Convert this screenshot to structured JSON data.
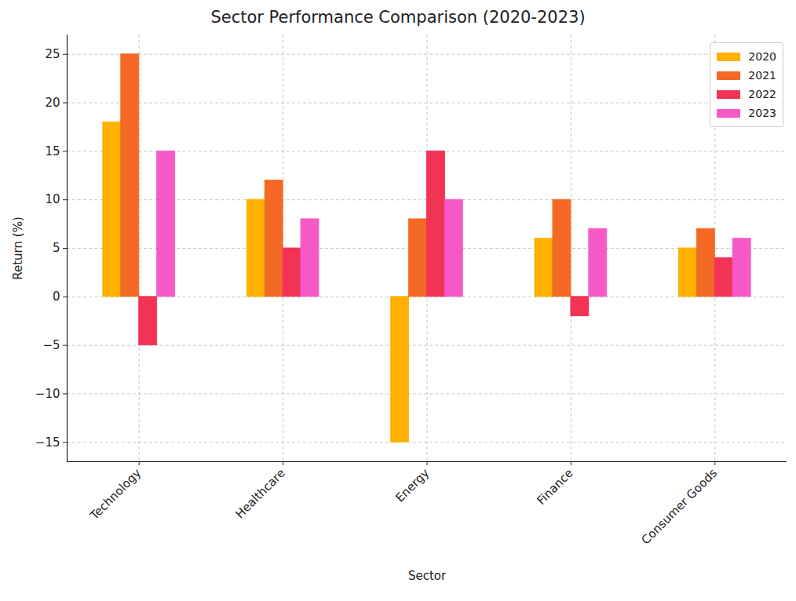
{
  "chart_data": {
    "type": "bar",
    "title": "Sector Performance Comparison (2020-2023)",
    "x_label": "Sector",
    "y_label": "Return (%)",
    "categories": [
      "Technology",
      "Healthcare",
      "Energy",
      "Finance",
      "Consumer Goods"
    ],
    "series": [
      {
        "name": "2020",
        "color": "#ffb000",
        "values": [
          18,
          10,
          -15,
          6,
          5
        ]
      },
      {
        "name": "2021",
        "color": "#f46a25",
        "values": [
          25,
          12,
          8,
          10,
          7
        ]
      },
      {
        "name": "2022",
        "color": "#f23353",
        "values": [
          -5,
          5,
          15,
          -2,
          4
        ]
      },
      {
        "name": "2023",
        "color": "#f75ac8",
        "values": [
          15,
          8,
          10,
          7,
          6
        ]
      }
    ],
    "ylim": [
      -17,
      27
    ],
    "yticks": [
      -15,
      -10,
      -5,
      0,
      5,
      10,
      15,
      20,
      25
    ],
    "grid": true,
    "legend": "upper right"
  }
}
